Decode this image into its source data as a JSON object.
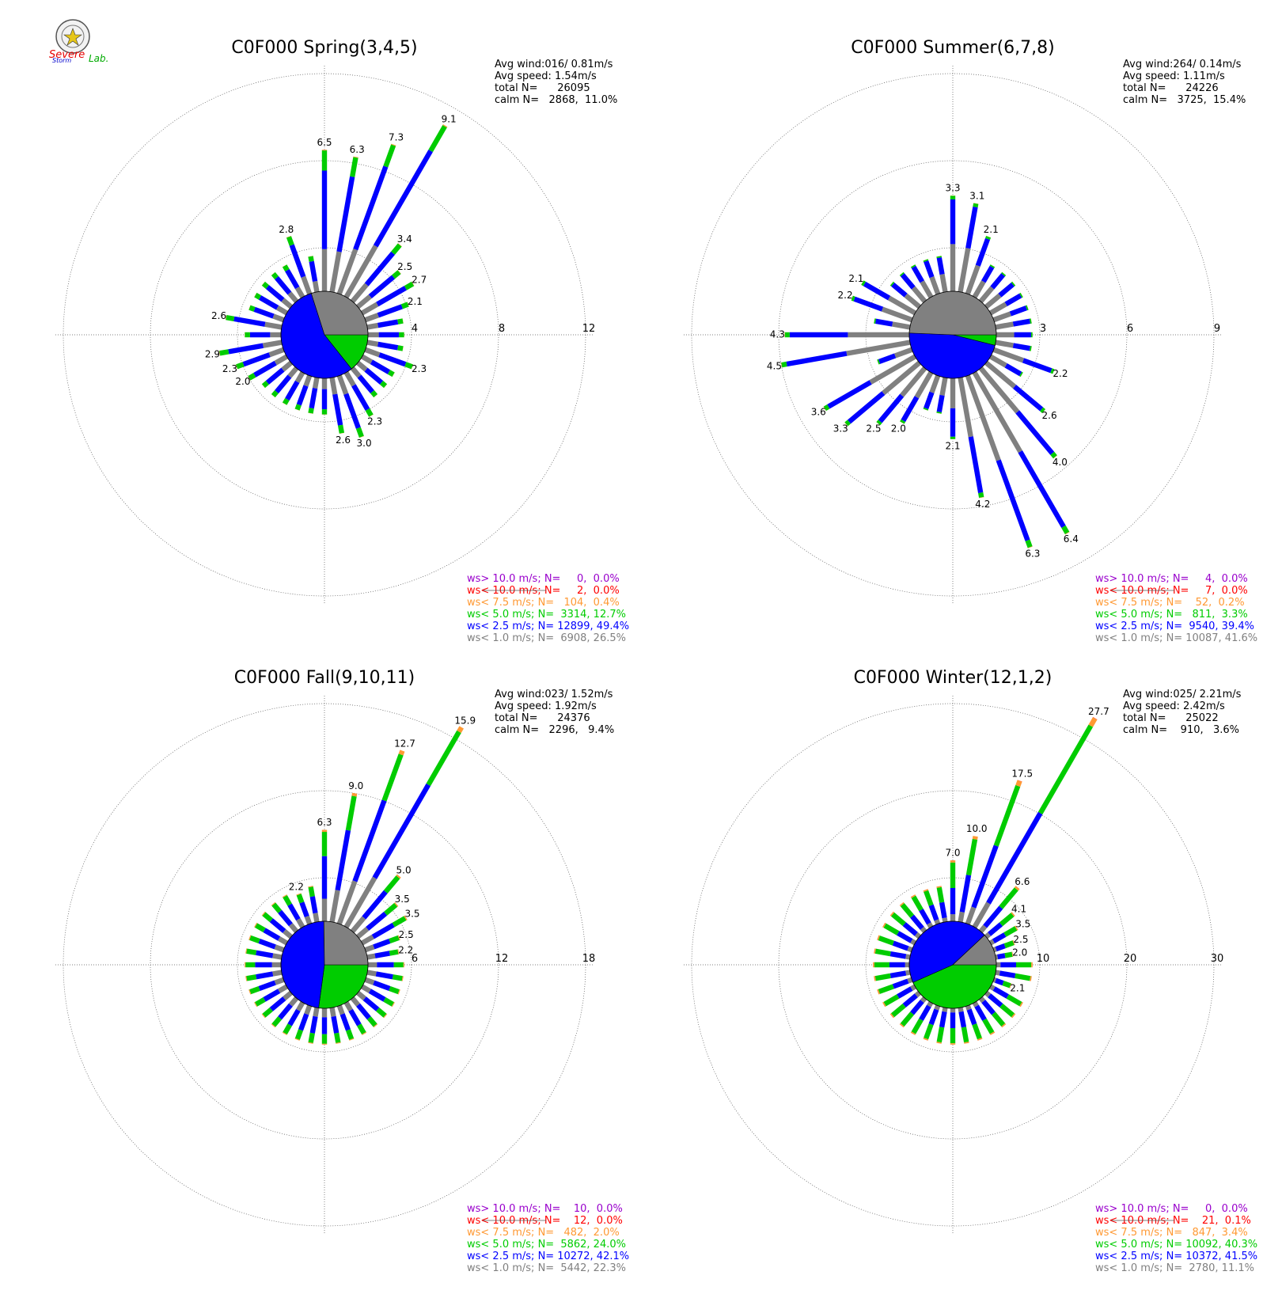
{
  "logo": {
    "text_a": "Severe",
    "text_b": "Storm",
    "text_c": "Lab."
  },
  "legend_labels": [
    "ws> 10.0 m/s; N=",
    "ws< 10.0 m/s; N=",
    "ws< 7.5 m/s; N=",
    "ws< 5.0 m/s; N=",
    "ws< 2.5 m/s; N=",
    "ws< 1.0 m/s; N="
  ],
  "colors": [
    "#9900cc",
    "#ff0000",
    "#ff9933",
    "#00cc00",
    "#0000ff",
    "#808080"
  ],
  "chart_data": [
    {
      "type": "polar-bar",
      "title": "C0F000 Spring(3,4,5)",
      "stats": {
        "avg_wind_label": "Avg wind:016/ 0.81m/s",
        "avg_speed_label": "Avg speed: 1.54m/s",
        "total_label": "total N=      26095",
        "calm_label": "calm N=   2868,  11.0%"
      },
      "ring_labels": [
        "4",
        "8",
        "12"
      ],
      "rmax": 12,
      "directions_deg": [
        10,
        20,
        30,
        40,
        50,
        60,
        70,
        80,
        90,
        100,
        110,
        120,
        130,
        140,
        150,
        160,
        170,
        180,
        190,
        200,
        210,
        220,
        230,
        240,
        250,
        260,
        270,
        280,
        290,
        300,
        310,
        320,
        330,
        340,
        350,
        360
      ],
      "bars": [
        {
          "dir": 10,
          "value": 6.3,
          "label": "6.3"
        },
        {
          "dir": 20,
          "value": 7.3,
          "label": "7.3"
        },
        {
          "dir": 30,
          "value": 9.1,
          "label": "9.1"
        },
        {
          "dir": 40,
          "value": 3.4,
          "label": "3.4"
        },
        {
          "dir": 50,
          "value": 2.5,
          "label": "2.5"
        },
        {
          "dir": 60,
          "value": 2.7,
          "label": "2.7"
        },
        {
          "dir": 70,
          "value": 2.1,
          "label": "2.1"
        },
        {
          "dir": 110,
          "value": 2.3,
          "label": "2.3"
        },
        {
          "dir": 150,
          "value": 2.3,
          "label": "2.3"
        },
        {
          "dir": 160,
          "value": 3.0,
          "label": "3.0"
        },
        {
          "dir": 170,
          "value": 2.6,
          "label": "2.6"
        },
        {
          "dir": 240,
          "value": 2.0,
          "label": "2.0"
        },
        {
          "dir": 250,
          "value": 2.3,
          "label": "2.3"
        },
        {
          "dir": 260,
          "value": 2.9,
          "label": "2.9"
        },
        {
          "dir": 280,
          "value": 2.6,
          "label": "2.6"
        },
        {
          "dir": 340,
          "value": 2.8,
          "label": "2.8"
        },
        {
          "dir": 360,
          "value": 6.5,
          "label": "6.5"
        }
      ],
      "legend_counts": [
        "    0,  0.0%",
        "    2,  0.0%",
        "  104,  0.4%",
        " 3314, 12.7%",
        "12899, 49.4%",
        " 6908, 26.5%"
      ],
      "class_percent": [
        0.0,
        0.0,
        0.4,
        12.7,
        49.4,
        26.5
      ]
    },
    {
      "type": "polar-bar",
      "title": "C0F000 Summer(6,7,8)",
      "stats": {
        "avg_wind_label": "Avg wind:264/ 0.14m/s",
        "avg_speed_label": "Avg speed: 1.11m/s",
        "total_label": "total N=      24226",
        "calm_label": "calm N=   3725,  15.4%"
      },
      "ring_labels": [
        "3",
        "6",
        "9"
      ],
      "rmax": 9,
      "directions_deg": [
        10,
        20,
        30,
        40,
        50,
        60,
        70,
        80,
        90,
        100,
        110,
        120,
        130,
        140,
        150,
        160,
        170,
        180,
        190,
        200,
        210,
        220,
        230,
        240,
        250,
        260,
        270,
        280,
        290,
        300,
        310,
        320,
        330,
        340,
        350,
        360
      ],
      "bars": [
        {
          "dir": 10,
          "value": 3.1,
          "label": "3.1"
        },
        {
          "dir": 20,
          "value": 2.1,
          "label": "2.1"
        },
        {
          "dir": 110,
          "value": 2.2,
          "label": "2.2"
        },
        {
          "dir": 130,
          "value": 2.6,
          "label": "2.6"
        },
        {
          "dir": 140,
          "value": 4.0,
          "label": "4.0"
        },
        {
          "dir": 150,
          "value": 6.4,
          "label": "6.4"
        },
        {
          "dir": 160,
          "value": 6.3,
          "label": "6.3"
        },
        {
          "dir": 170,
          "value": 4.2,
          "label": "4.2"
        },
        {
          "dir": 180,
          "value": 2.1,
          "label": "2.1"
        },
        {
          "dir": 210,
          "value": 2.0,
          "label": "2.0"
        },
        {
          "dir": 220,
          "value": 2.5,
          "label": "2.5"
        },
        {
          "dir": 230,
          "value": 3.3,
          "label": "3.3"
        },
        {
          "dir": 240,
          "value": 3.6,
          "label": "3.6"
        },
        {
          "dir": 260,
          "value": 4.5,
          "label": "4.5"
        },
        {
          "dir": 270,
          "value": 4.3,
          "label": "4.3"
        },
        {
          "dir": 290,
          "value": 2.2,
          "label": "2.2"
        },
        {
          "dir": 300,
          "value": 2.1,
          "label": "2.1"
        },
        {
          "dir": 360,
          "value": 3.3,
          "label": "3.3"
        }
      ],
      "legend_counts": [
        "    4,  0.0%",
        "    7,  0.0%",
        "   52,  0.2%",
        "  811,  3.3%",
        " 9540, 39.4%",
        "10087, 41.6%"
      ],
      "class_percent": [
        0.0,
        0.0,
        0.2,
        3.3,
        39.4,
        41.6
      ]
    },
    {
      "type": "polar-bar",
      "title": "C0F000 Fall(9,10,11)",
      "stats": {
        "avg_wind_label": "Avg wind:023/ 1.52m/s",
        "avg_speed_label": "Avg speed: 1.92m/s",
        "total_label": "total N=      24376",
        "calm_label": "calm N=   2296,   9.4%"
      },
      "ring_labels": [
        "6",
        "12",
        "18"
      ],
      "rmax": 18,
      "directions_deg": [
        10,
        20,
        30,
        40,
        50,
        60,
        70,
        80,
        90,
        100,
        110,
        120,
        130,
        140,
        150,
        160,
        170,
        180,
        190,
        200,
        210,
        220,
        230,
        240,
        250,
        260,
        270,
        280,
        290,
        300,
        310,
        320,
        330,
        340,
        350,
        360
      ],
      "bars": [
        {
          "dir": 10,
          "value": 9.0,
          "label": "9.0"
        },
        {
          "dir": 20,
          "value": 12.7,
          "label": "12.7"
        },
        {
          "dir": 30,
          "value": 15.9,
          "label": "15.9"
        },
        {
          "dir": 40,
          "value": 5.0,
          "label": "5.0"
        },
        {
          "dir": 50,
          "value": 3.5,
          "label": "3.5"
        },
        {
          "dir": 60,
          "value": 3.5,
          "label": "3.5"
        },
        {
          "dir": 70,
          "value": 2.5,
          "label": "2.5"
        },
        {
          "dir": 80,
          "value": 2.2,
          "label": "2.2"
        },
        {
          "dir": 340,
          "value": 2.2,
          "label": "2.2"
        },
        {
          "dir": 360,
          "value": 6.3,
          "label": "6.3"
        }
      ],
      "legend_counts": [
        "   10,  0.0%",
        "   12,  0.0%",
        "  482,  2.0%",
        " 5862, 24.0%",
        "10272, 42.1%",
        " 5442, 22.3%"
      ],
      "class_percent": [
        0.0,
        0.0,
        2.0,
        24.0,
        42.1,
        22.3
      ]
    },
    {
      "type": "polar-bar",
      "title": "C0F000 Winter(12,1,2)",
      "stats": {
        "avg_wind_label": "Avg wind:025/ 2.21m/s",
        "avg_speed_label": "Avg speed: 2.42m/s",
        "total_label": "total N=      25022",
        "calm_label": "calm N=    910,   3.6%"
      },
      "ring_labels": [
        "10",
        "20",
        "30"
      ],
      "rmax": 30,
      "directions_deg": [
        10,
        20,
        30,
        40,
        50,
        60,
        70,
        80,
        90,
        100,
        110,
        120,
        130,
        140,
        150,
        160,
        170,
        180,
        190,
        200,
        210,
        220,
        230,
        240,
        250,
        260,
        270,
        280,
        290,
        300,
        310,
        320,
        330,
        340,
        350,
        360
      ],
      "bars": [
        {
          "dir": 10,
          "value": 10.0,
          "label": "10.0"
        },
        {
          "dir": 20,
          "value": 17.5,
          "label": "17.5"
        },
        {
          "dir": 30,
          "value": 27.7,
          "label": "27.7"
        },
        {
          "dir": 40,
          "value": 6.6,
          "label": "6.6"
        },
        {
          "dir": 50,
          "value": 4.1,
          "label": "4.1"
        },
        {
          "dir": 60,
          "value": 3.5,
          "label": "3.5"
        },
        {
          "dir": 70,
          "value": 2.5,
          "label": "2.5"
        },
        {
          "dir": 80,
          "value": 2.0,
          "label": "2.0"
        },
        {
          "dir": 110,
          "value": 2.1,
          "label": "2.1"
        },
        {
          "dir": 360,
          "value": 7.0,
          "label": "7.0"
        }
      ],
      "legend_counts": [
        "    0,  0.0%",
        "   21,  0.1%",
        "  847,  3.4%",
        "10092, 40.3%",
        "10372, 41.5%",
        " 2780, 11.1%"
      ],
      "class_percent": [
        0.0,
        0.1,
        3.4,
        40.3,
        41.5,
        11.1
      ]
    }
  ]
}
